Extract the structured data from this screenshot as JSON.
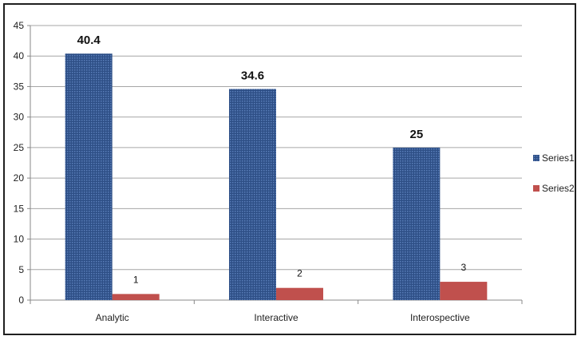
{
  "chart_data": {
    "type": "bar",
    "categories": [
      "Analytic",
      "Interactive",
      "Interospective"
    ],
    "series": [
      {
        "name": "Series1",
        "values": [
          40.4,
          34.6,
          25
        ],
        "color": "#2e4f86",
        "value_labels": [
          "40.4",
          "34.6",
          "25"
        ]
      },
      {
        "name": "Series2",
        "values": [
          1,
          2,
          3
        ],
        "color": "#c0504d",
        "value_labels": [
          "1",
          "2",
          "3"
        ]
      }
    ],
    "ylim": [
      0,
      45
    ],
    "yticks": [
      "0",
      "5",
      "10",
      "15",
      "20",
      "25",
      "30",
      "35",
      "40",
      "45"
    ],
    "grid": true,
    "legend_position": "right",
    "title": "",
    "xlabel": "",
    "ylabel": ""
  }
}
